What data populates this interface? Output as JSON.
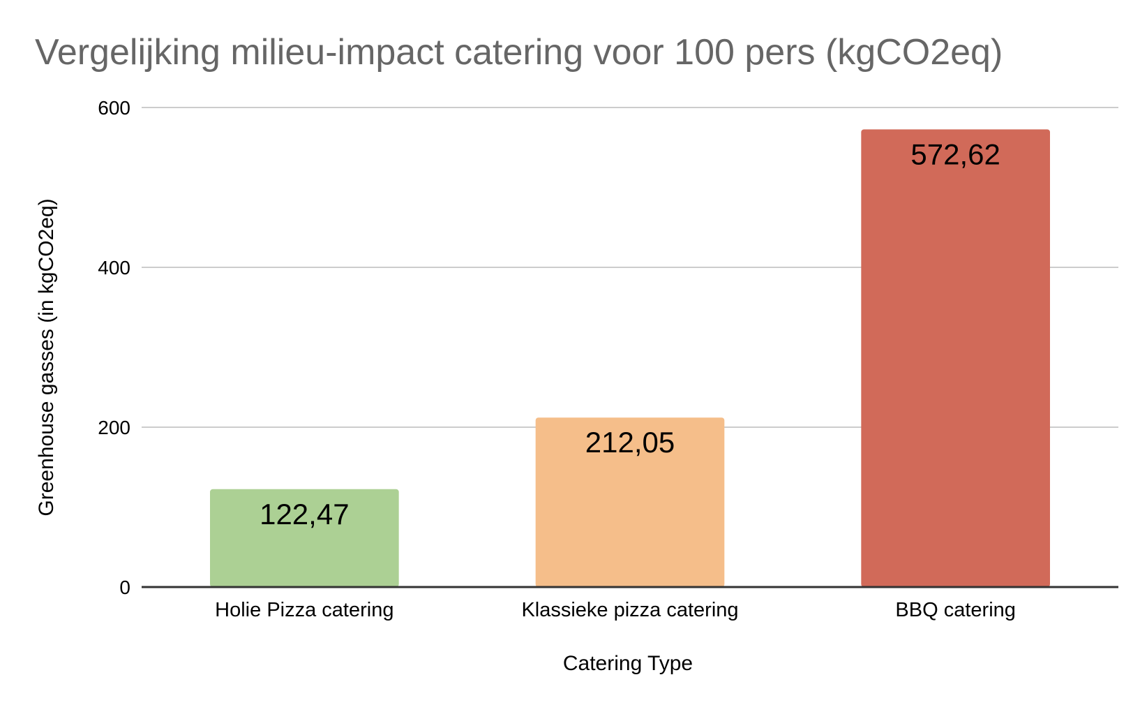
{
  "chart_data": {
    "type": "bar",
    "title": "Vergelijking milieu-impact catering voor 100 pers (kgCO2eq)",
    "xlabel": "Catering Type",
    "ylabel": "Greenhouse gasses (in kgCO2eq)",
    "categories": [
      "Holie Pizza catering",
      "Klassieke pizza catering",
      "BBQ catering"
    ],
    "values": [
      122.47,
      212.05,
      572.62
    ],
    "data_labels": [
      "122,47",
      "212,05",
      "572,62"
    ],
    "bar_colors": [
      "#acd094",
      "#f5be8a",
      "#d16a59"
    ],
    "ylim": [
      0,
      600
    ],
    "yticks": [
      0,
      200,
      400,
      600
    ],
    "ytick_labels": [
      "0",
      "200",
      "400",
      "600"
    ],
    "grid": true,
    "legend": "none"
  }
}
